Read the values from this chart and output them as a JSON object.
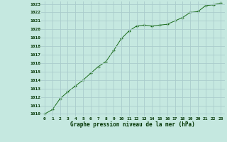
{
  "x": [
    0,
    1,
    2,
    3,
    4,
    5,
    6,
    7,
    8,
    9,
    10,
    11,
    12,
    13,
    14,
    15,
    16,
    17,
    18,
    19,
    20,
    21,
    22,
    23
  ],
  "y": [
    1010.0,
    1010.5,
    1011.8,
    1012.6,
    1013.3,
    1014.0,
    1014.8,
    1015.6,
    1016.2,
    1017.5,
    1018.9,
    1019.8,
    1020.4,
    1020.5,
    1020.4,
    1020.5,
    1020.6,
    1021.0,
    1021.4,
    1022.0,
    1022.1,
    1022.8,
    1022.9,
    1023.1
  ],
  "line_color": "#1a6b1a",
  "marker": "+",
  "marker_color": "#1a6b1a",
  "bg_color": "#c5e8e0",
  "grid_color": "#aacccc",
  "xlabel": "Graphe pression niveau de la mer (hPa)",
  "xlabel_color": "#003300",
  "tick_color": "#003300",
  "ylim": [
    1010,
    1023
  ],
  "xlim": [
    0,
    23
  ],
  "yticks": [
    1010,
    1011,
    1012,
    1013,
    1014,
    1015,
    1016,
    1017,
    1018,
    1019,
    1020,
    1021,
    1022,
    1023
  ],
  "xticks": [
    0,
    1,
    2,
    3,
    4,
    5,
    6,
    7,
    8,
    9,
    10,
    11,
    12,
    13,
    14,
    15,
    16,
    17,
    18,
    19,
    20,
    21,
    22,
    23
  ]
}
